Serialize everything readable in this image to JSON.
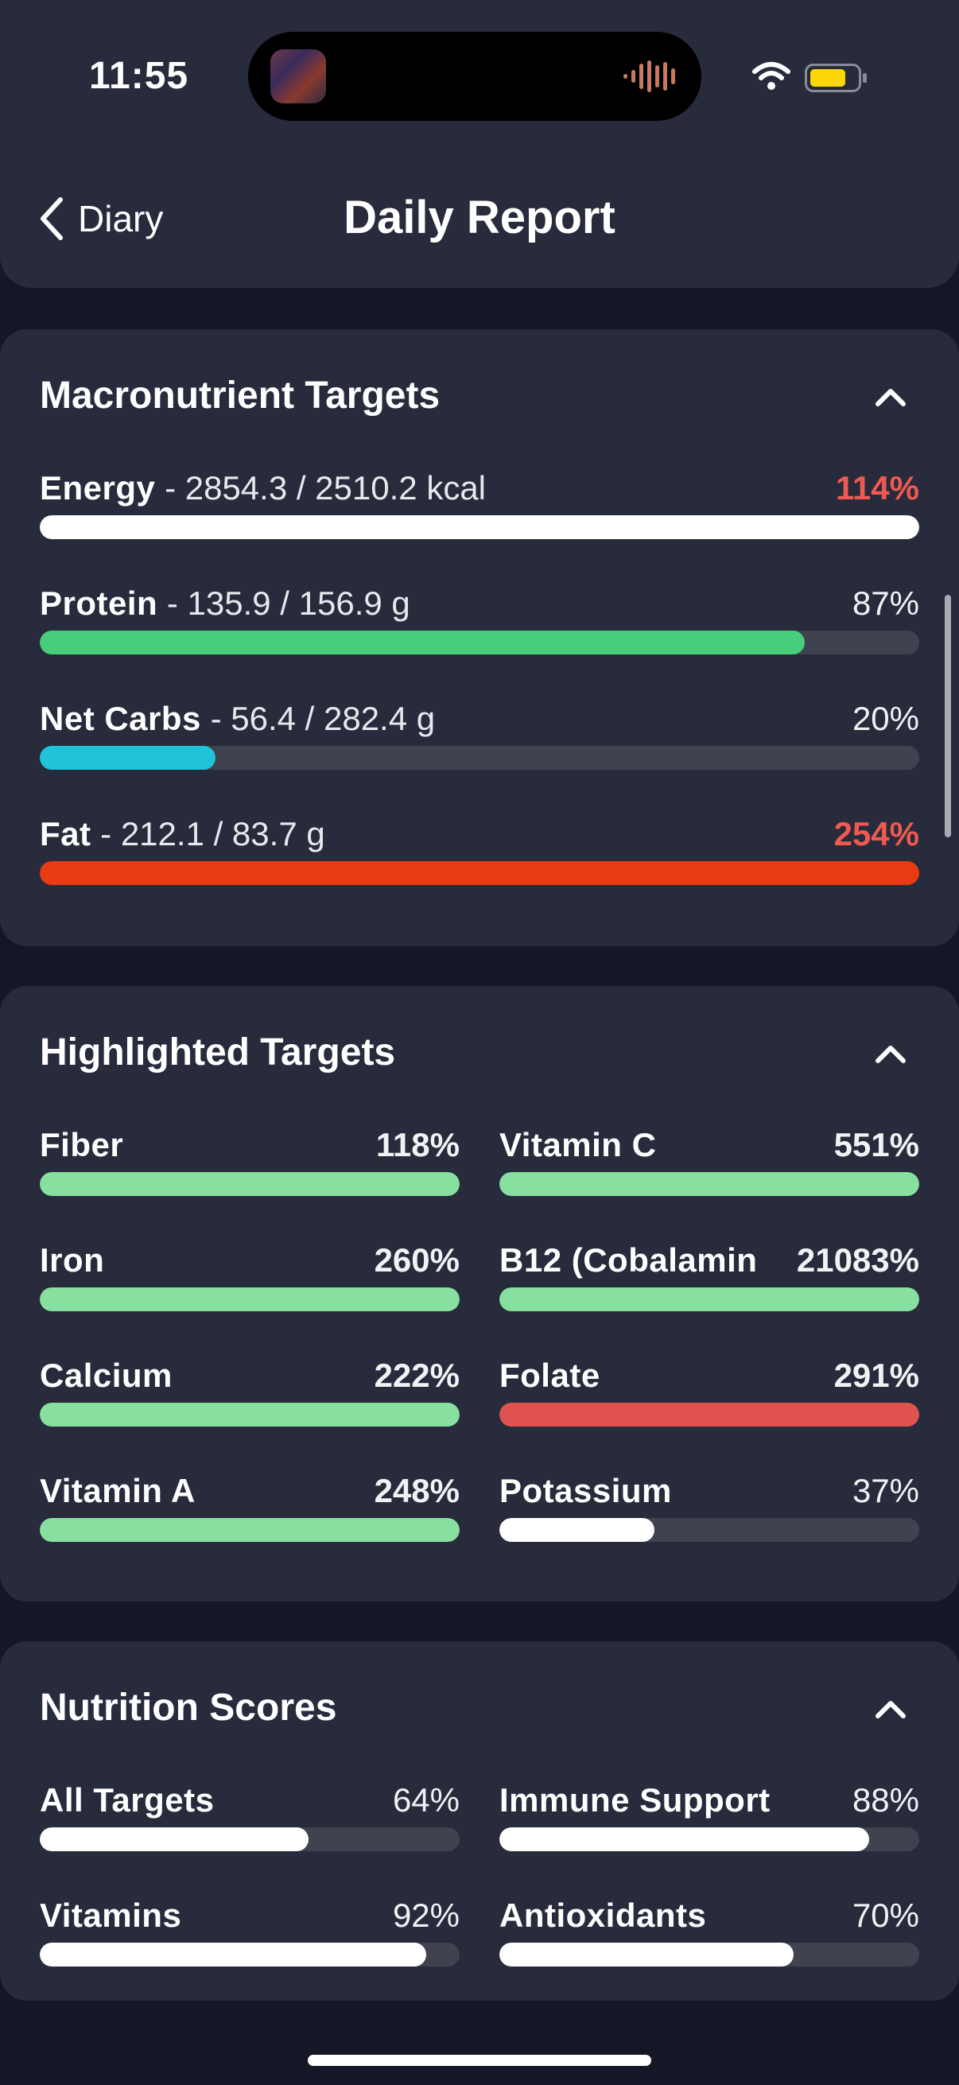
{
  "status_bar": {
    "time": "11:55"
  },
  "header": {
    "back_label": "Diary",
    "title": "Daily Report"
  },
  "macros": {
    "title": "Macronutrient Targets",
    "items": [
      {
        "name": "Energy",
        "detail": "- 2854.3 / 2510.2 kcal",
        "percent": "114%",
        "fill": 1.0,
        "color": "#ffffff",
        "over": true
      },
      {
        "name": "Protein",
        "detail": "- 135.9 / 156.9 g",
        "percent": "87%",
        "fill": 0.87,
        "color": "#48cd7a",
        "over": false
      },
      {
        "name": "Net Carbs",
        "detail": "- 56.4 / 282.4 g",
        "percent": "20%",
        "fill": 0.2,
        "color": "#1fc4d8",
        "over": false
      },
      {
        "name": "Fat",
        "detail": "- 212.1 / 83.7 g",
        "percent": "254%",
        "fill": 1.0,
        "color": "#e83b12",
        "over": true
      }
    ]
  },
  "highlighted": {
    "title": "Highlighted Targets",
    "items": [
      {
        "name": "Fiber",
        "percent": "118%",
        "fill": 1.0,
        "color": "#88e0a0",
        "bold": true
      },
      {
        "name": "Vitamin C",
        "percent": "551%",
        "fill": 1.0,
        "color": "#88e0a0",
        "bold": true
      },
      {
        "name": "Iron",
        "percent": "260%",
        "fill": 1.0,
        "color": "#88e0a0",
        "bold": true
      },
      {
        "name": "B12 (Cobalamin",
        "percent": "21083%",
        "fill": 1.0,
        "color": "#88e0a0",
        "bold": true
      },
      {
        "name": "Calcium",
        "percent": "222%",
        "fill": 1.0,
        "color": "#88e0a0",
        "bold": true
      },
      {
        "name": "Folate",
        "percent": "291%",
        "fill": 1.0,
        "color": "#e0524f",
        "bold": true
      },
      {
        "name": "Vitamin A",
        "percent": "248%",
        "fill": 1.0,
        "color": "#88e0a0",
        "bold": true
      },
      {
        "name": "Potassium",
        "percent": "37%",
        "fill": 0.37,
        "color": "#ffffff",
        "bold": false
      }
    ]
  },
  "scores": {
    "title": "Nutrition Scores",
    "items": [
      {
        "name": "All Targets",
        "percent": "64%",
        "fill": 0.64,
        "color": "#ffffff",
        "bold": false
      },
      {
        "name": "Immune Support",
        "percent": "88%",
        "fill": 0.88,
        "color": "#ffffff",
        "bold": false
      },
      {
        "name": "Vitamins",
        "percent": "92%",
        "fill": 0.92,
        "color": "#ffffff",
        "bold": false
      },
      {
        "name": "Antioxidants",
        "percent": "70%",
        "fill": 0.7,
        "color": "#ffffff",
        "bold": false
      }
    ]
  }
}
